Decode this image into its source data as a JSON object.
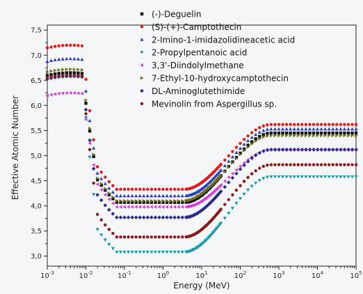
{
  "chart_data": {
    "type": "scatter",
    "xlabel": "Energy (MeV)",
    "ylabel": "Effective Atomic Number",
    "xscale": "log",
    "xlim": [
      0.001,
      100000
    ],
    "ylim": [
      2.8,
      7.6
    ],
    "grid": false,
    "legend_position": "top-right",
    "x_ticks": [
      {
        "value": 0.001,
        "base": "10",
        "exp": "-3"
      },
      {
        "value": 0.01,
        "base": "10",
        "exp": "-2"
      },
      {
        "value": 0.1,
        "base": "10",
        "exp": "-1"
      },
      {
        "value": 1,
        "base": "10",
        "exp": "0"
      },
      {
        "value": 10,
        "base": "10",
        "exp": "1"
      },
      {
        "value": 100,
        "base": "10",
        "exp": "2"
      },
      {
        "value": 1000,
        "base": "10",
        "exp": "3"
      },
      {
        "value": 10000,
        "base": "10",
        "exp": "4"
      },
      {
        "value": 100000,
        "base": "10",
        "exp": "5"
      }
    ],
    "y_ticks": [
      {
        "value": 3.0,
        "label": "3,0"
      },
      {
        "value": 3.5,
        "label": "3,5"
      },
      {
        "value": 4.0,
        "label": "4,0"
      },
      {
        "value": 4.5,
        "label": "4,5"
      },
      {
        "value": 5.0,
        "label": "5,0"
      },
      {
        "value": 5.5,
        "label": "5,5"
      },
      {
        "value": 6.0,
        "label": "6,0"
      },
      {
        "value": 6.5,
        "label": "6,5"
      },
      {
        "value": 7.0,
        "label": "7,0"
      },
      {
        "value": 7.5,
        "label": "7,5"
      }
    ],
    "series": [
      {
        "name": "(-)-Deguelin",
        "color": "#111111",
        "marker": "square",
        "peak": 6.65,
        "min": 4.07,
        "high": 5.45
      },
      {
        "name": "(S)-(+)-Camptothecin",
        "color": "#e01c1c",
        "marker": "circle",
        "peak": 7.2,
        "min": 4.33,
        "high": 5.62
      },
      {
        "name": "2-Imino-1-imidazolidineacetic acid",
        "color": "#2a3fc0",
        "marker": "triangle-up",
        "peak": 6.93,
        "min": 4.2,
        "high": 5.53
      },
      {
        "name": "2-Propylpentanoic acid",
        "color": "#169aa8",
        "marker": "triangle-down",
        "peak": 6.6,
        "min": 3.08,
        "high": 4.58
      },
      {
        "name": "3,3'-Diindolylmethane",
        "color": "#d13fd0",
        "marker": "triangle-left",
        "peak": 6.25,
        "min": 3.98,
        "high": 5.12
      },
      {
        "name": "7-Ethyl-10-hydroxycamptothecin",
        "color": "#6b6e1a",
        "marker": "triangle-right",
        "peak": 6.72,
        "min": 4.1,
        "high": 5.4
      },
      {
        "name": "DL-Aminoglutethimide",
        "color": "#2d2a8f",
        "marker": "diamond",
        "peak": 6.58,
        "min": 3.77,
        "high": 5.12
      },
      {
        "name": "Mevinolin from Aspergillus sp.",
        "color": "#8a1818",
        "marker": "circle",
        "peak": 6.6,
        "min": 3.38,
        "high": 4.82
      }
    ]
  }
}
